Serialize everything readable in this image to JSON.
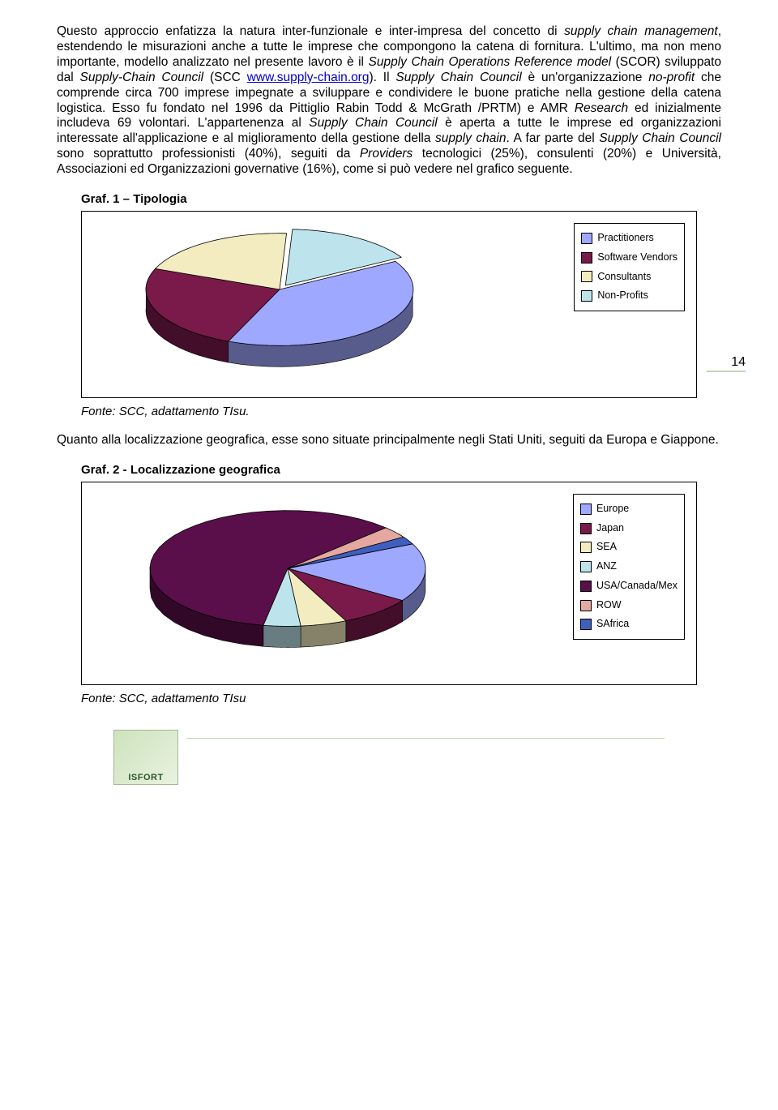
{
  "page": {
    "number": "14",
    "paragraph_html": "Questo approccio enfatizza la natura inter-funzionale e inter-impresa del concetto di <span class='italic'>supply chain management</span>, estendendo le misurazioni anche a tutte le imprese che compongono la catena di fornitura. L'ultimo, ma non meno importante, modello analizzato nel presente lavoro è il <span class='italic'>Supply Chain Operations Reference model</span> (SCOR) sviluppato dal <span class='italic'>Supply-Chain Council</span> (SCC <span class='link'>www.supply-chain.org</span>). Il <span class='italic'>Supply Chain Council</span> è un'organizzazione <span class='italic'>no-profit</span> che comprende circa 700 imprese impegnate a sviluppare e condividere le buone pratiche nella gestione della catena logistica. Esso fu fondato nel 1996 da Pittiglio Rabin Todd & McGrath /PRTM) e AMR <span class='italic'>Research</span> ed inizialmente includeva 69 volontari. L'appartenenza al <span class='italic'>Supply Chain Council</span> è aperta a tutte le imprese ed organizzazioni interessate all'applicazione e al miglioramento della gestione della <span class='italic'>supply chain</span>. A far parte del <span class='italic'>Supply Chain Council</span> sono soprattutto professionisti (40%), seguiti da <span class='italic'>Providers</span> tecnologici (25%), consulenti (20%) e Università, Associazioni ed Organizzazioni governative (16%), come si può vedere nel grafico seguente.",
    "graf1_title": "Graf. 1 – Tipologia",
    "graf2_title": "Graf. 2 - Localizzazione geografica",
    "fonte1": "Fonte: SCC, adattamento TIsu.",
    "fonte2": "Fonte: SCC, adattamento TIsu",
    "mid_paragraph": "Quanto alla localizzazione geografica, esse sono situate principalmente negli Stati Uniti, seguiti da Europa e Giappone.",
    "footer_logo": "ISFORT"
  },
  "chart1": {
    "type": "pie",
    "background_color": "#ffffff",
    "border_color": "#000000",
    "legend_border_color": "#000000",
    "legend_fontsize": 12.5,
    "slices": [
      {
        "label": "Practitioners",
        "value": 40,
        "color": "#9fa8ff",
        "swatch": "#9fa8ff"
      },
      {
        "label": "Software Vendors",
        "value": 25,
        "color": "#7a1a4a",
        "swatch": "#7a1a4a"
      },
      {
        "label": "Consultants",
        "value": 20,
        "color": "#f3ecc0",
        "swatch": "#f3ecc0"
      },
      {
        "label": "Non-Profits",
        "value": 16,
        "color": "#bde4ec",
        "swatch": "#bde4ec"
      }
    ],
    "start_angle_deg": -30,
    "tilt": 0.42,
    "depth": 26,
    "radius": 165,
    "explode_index": 3,
    "explode_dist": 14,
    "side_shade": 0.55
  },
  "chart2": {
    "type": "pie",
    "background_color": "#ffffff",
    "border_color": "#000000",
    "legend_border_color": "#000000",
    "legend_fontsize": 12.5,
    "slices": [
      {
        "label": "Europe",
        "value": 15,
        "color": "#9fa8ff",
        "swatch": "#9fa8ff"
      },
      {
        "label": "Japan",
        "value": 8,
        "color": "#7a1a4a",
        "swatch": "#7a1a4a"
      },
      {
        "label": "SEA",
        "value": 5,
        "color": "#f3ecc0",
        "swatch": "#f3ecc0"
      },
      {
        "label": "ANZ",
        "value": 4,
        "color": "#bde4ec",
        "swatch": "#bde4ec"
      },
      {
        "label": "USA/Canada/Mex",
        "value": 55,
        "color": "#5a0f4a",
        "swatch": "#5a0f4a"
      },
      {
        "label": "ROW",
        "value": 3,
        "color": "#e4a8a0",
        "swatch": "#e4a8a0"
      },
      {
        "label": "SAfrica",
        "value": 2,
        "color": "#3f5fbf",
        "swatch": "#3f5fbf"
      }
    ],
    "start_angle_deg": -25,
    "tilt": 0.42,
    "depth": 26,
    "radius": 170,
    "explode_index": -1,
    "explode_dist": 0,
    "side_shade": 0.55
  }
}
